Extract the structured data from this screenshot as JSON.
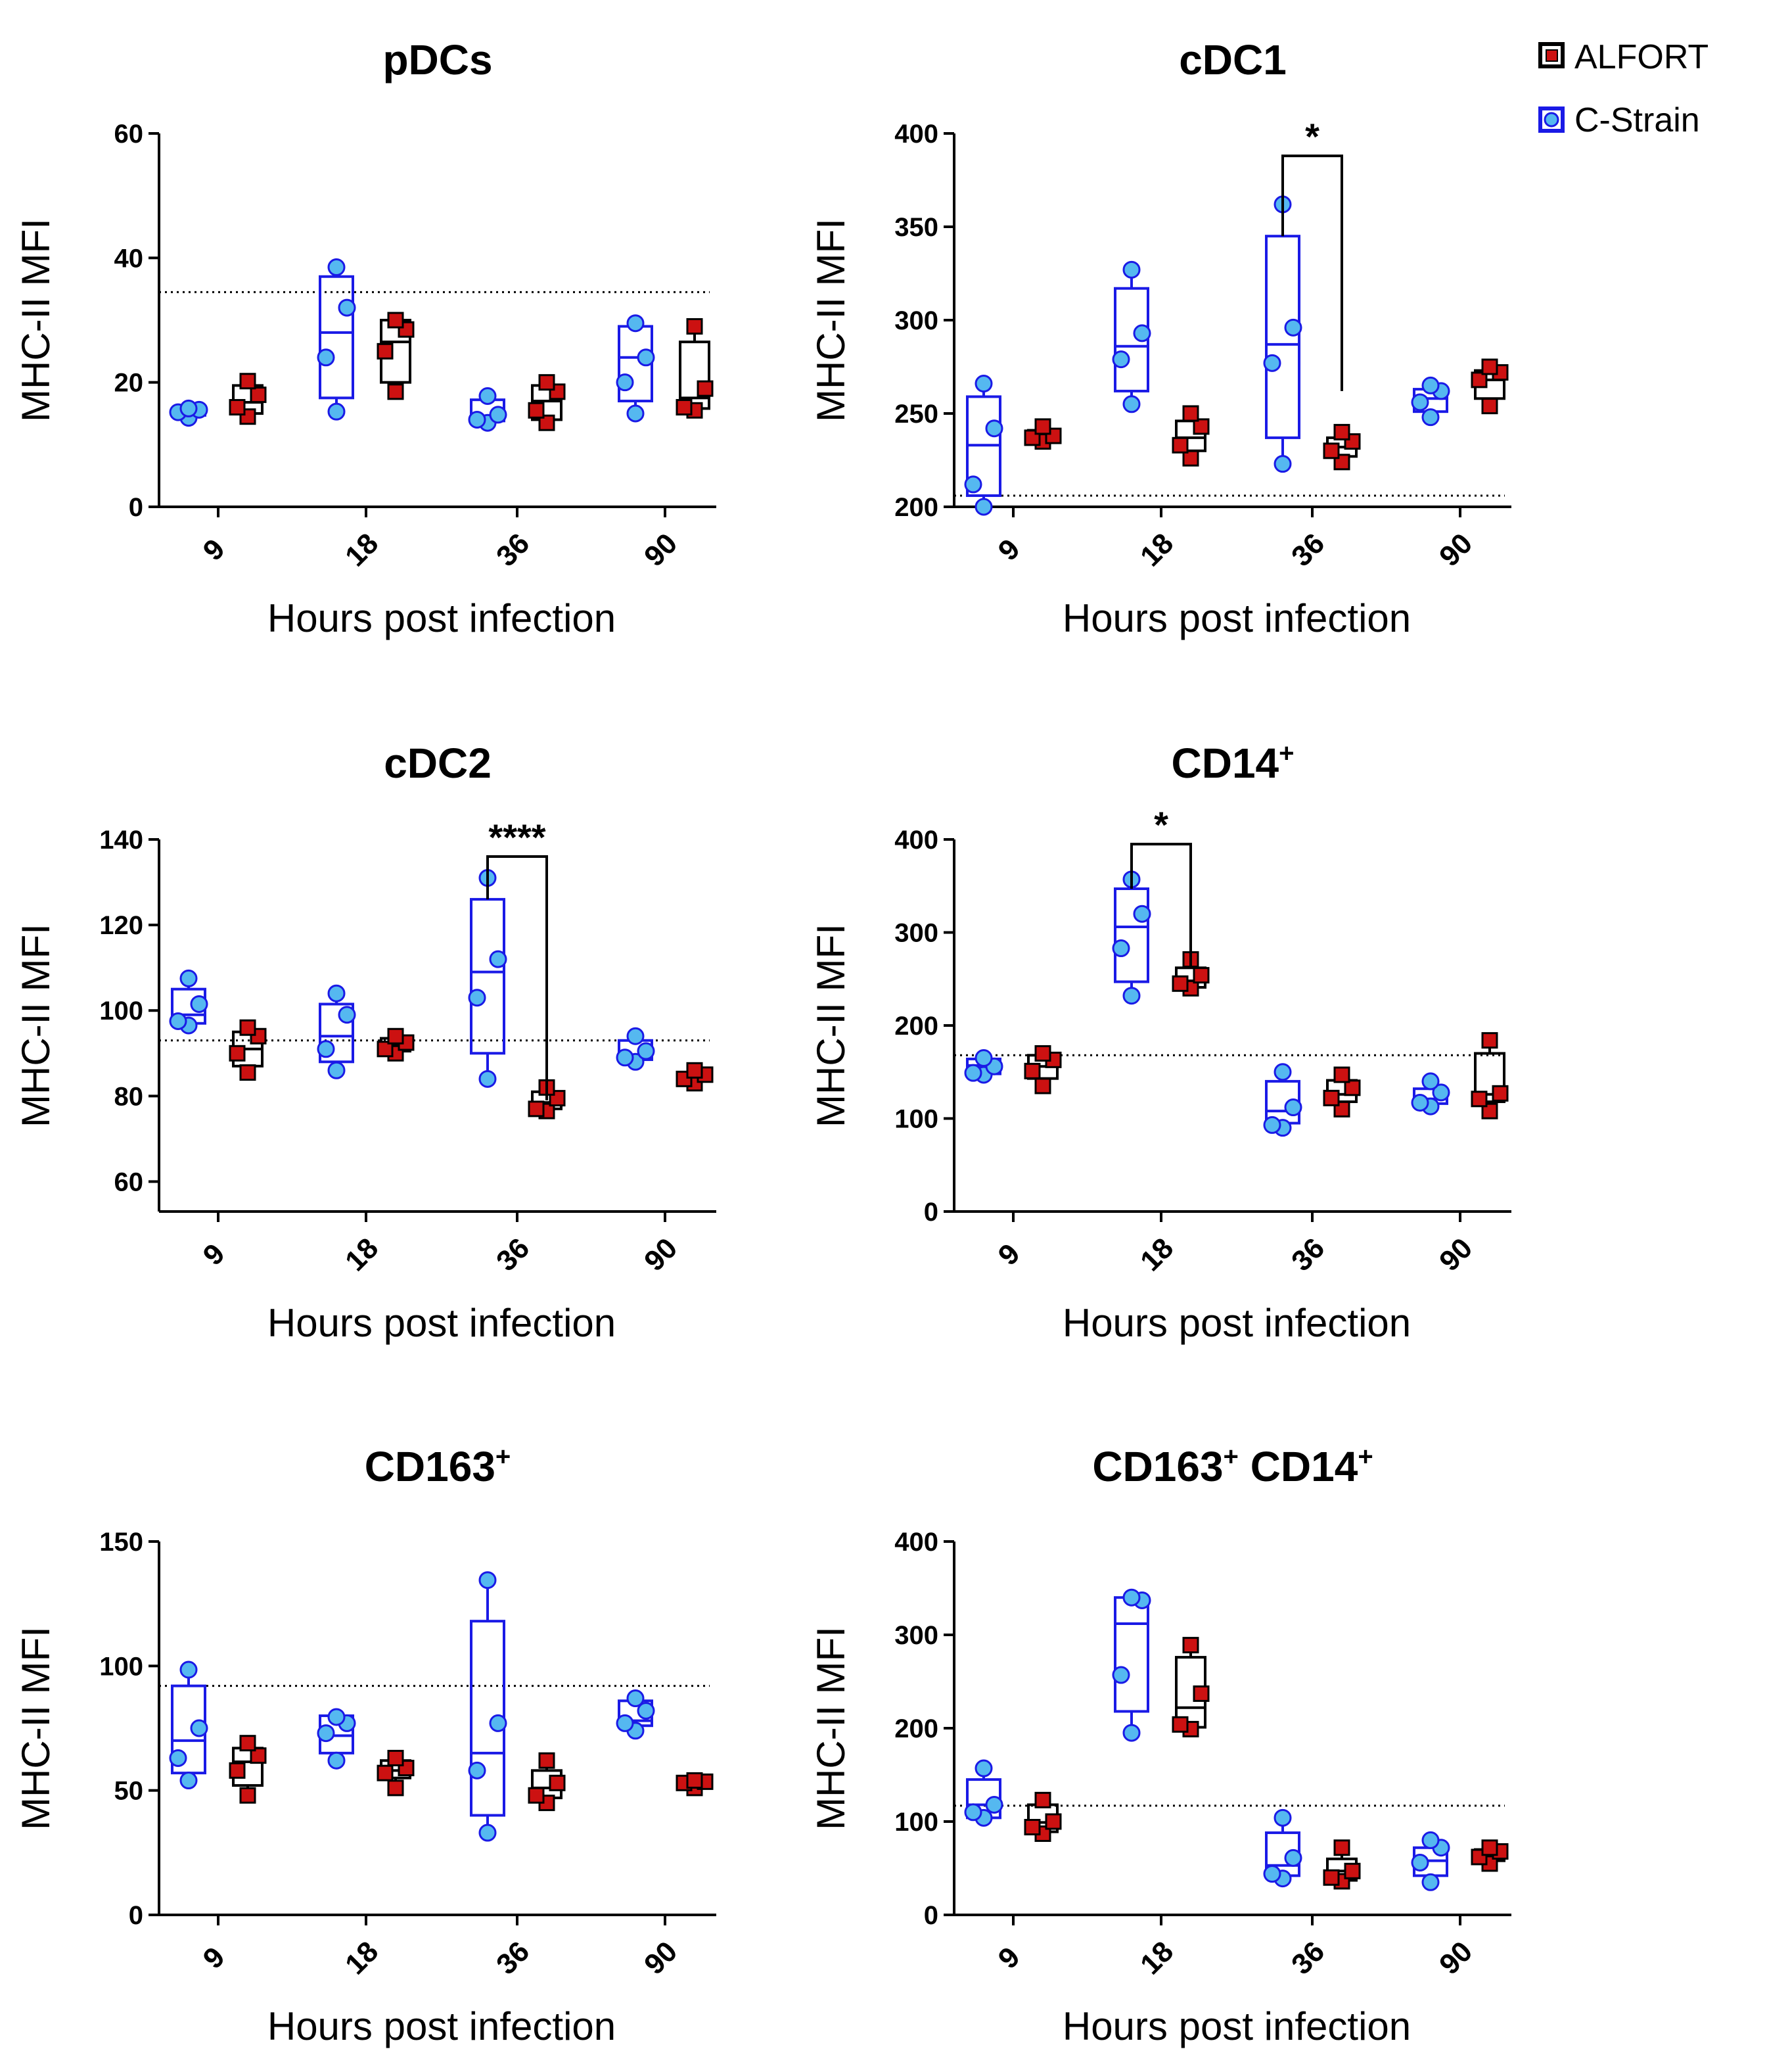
{
  "figure": {
    "legend": [
      {
        "name": "ALFORT",
        "marker": "square",
        "fill": "#cc1111",
        "stroke": "#000000"
      },
      {
        "name": "C-Strain",
        "marker": "circle",
        "fill": "#55b8f0",
        "stroke": "#1a1ae6"
      }
    ]
  },
  "chart_data": [
    {
      "type": "box",
      "title": "pDCs",
      "xlabel": "Hours post infection",
      "ylabel": "MHC-II MFI",
      "ylim": [
        0,
        60
      ],
      "yticks": [
        0,
        20,
        40,
        60
      ],
      "categories": [
        "9",
        "18",
        "36",
        "90"
      ],
      "baseline": 34.5,
      "series": [
        {
          "name": "C-Strain",
          "points": [
            [
              14.3,
              15.2,
              15.6,
              15.8
            ],
            [
              15.3,
              24,
              32,
              38.5
            ],
            [
              13.5,
              14,
              14.8,
              17.8
            ],
            [
              15,
              20,
              24,
              29.5
            ]
          ],
          "box": [
            [
              14.7,
              15.3,
              15.7
            ],
            [
              17.5,
              28,
              37
            ],
            [
              13.8,
              14.4,
              17.2
            ],
            [
              17,
              24,
              29
            ]
          ]
        },
        {
          "name": "ALFORT",
          "points": [
            [
              14.5,
              16,
              18,
              20.2
            ],
            [
              18.5,
              25,
              28.5,
              30
            ],
            [
              13.5,
              15.5,
              18.5,
              20
            ],
            [
              15.5,
              16,
              19,
              29
            ]
          ],
          "box": [
            [
              15,
              16.8,
              19.5
            ],
            [
              20,
              26.5,
              30
            ],
            [
              14,
              17,
              19.5
            ],
            [
              15.8,
              17.5,
              26.5
            ]
          ]
        }
      ],
      "significance": []
    },
    {
      "type": "box",
      "title": "cDC1",
      "xlabel": "Hours post infection",
      "ylabel": "MHC-II MFI",
      "ylim": [
        200,
        400
      ],
      "yticks": [
        200,
        250,
        300,
        350,
        400
      ],
      "categories": [
        "9",
        "18",
        "36",
        "90"
      ],
      "baseline": 206,
      "series": [
        {
          "name": "C-Strain",
          "points": [
            [
              200,
              212,
              242,
              266
            ],
            [
              255,
              279,
              293,
              327
            ],
            [
              223,
              277,
              296,
              362
            ],
            [
              248,
              256,
              262,
              265
            ]
          ],
          "box": [
            [
              206,
              233,
              259
            ],
            [
              262,
              286,
              317
            ],
            [
              237,
              287,
              345
            ],
            [
              251,
              258,
              263
            ]
          ]
        },
        {
          "name": "ALFORT",
          "points": [
            [
              235,
              237,
              238,
              243
            ],
            [
              226,
              233,
              243,
              250
            ],
            [
              224,
              230,
              235,
              240
            ],
            [
              254,
              268,
              272,
              275
            ]
          ],
          "box": [
            [
              236,
              239,
              241
            ],
            [
              230,
              237,
              246
            ],
            [
              227,
              232,
              237
            ],
            [
              258,
              268,
              273
            ]
          ]
        }
      ],
      "significance": [
        {
          "label": "*",
          "category": "36",
          "top": 388,
          "left_end": 345,
          "right_end": 262
        }
      ]
    },
    {
      "type": "box",
      "title": "cDC2",
      "xlabel": "Hours post infection",
      "ylabel": "MHC-II MFI",
      "ylim": [
        53,
        140
      ],
      "yticks": [
        60,
        80,
        100,
        120,
        140
      ],
      "categories": [
        "9",
        "18",
        "36",
        "90"
      ],
      "baseline": 93,
      "series": [
        {
          "name": "C-Strain",
          "points": [
            [
              96.5,
              97.5,
              101.5,
              107.5
            ],
            [
              86,
              91,
              99,
              104
            ],
            [
              84,
              103,
              112,
              131
            ],
            [
              88,
              89,
              90.5,
              94
            ]
          ],
          "box": [
            [
              97,
              99,
              105
            ],
            [
              88,
              94,
              101.5
            ],
            [
              90,
              109,
              126
            ],
            [
              88.5,
              89.5,
              93
            ]
          ]
        },
        {
          "name": "ALFORT",
          "points": [
            [
              85.5,
              90,
              94,
              96
            ],
            [
              90,
              91,
              92.5,
              94
            ],
            [
              76.5,
              77,
              79.5,
              82
            ],
            [
              83,
              84,
              85,
              86
            ]
          ],
          "box": [
            [
              87,
              91,
              95
            ],
            [
              90.5,
              92,
              93.5
            ],
            [
              77,
              78.5,
              81
            ],
            [
              83.5,
              84.5,
              85.5
            ]
          ]
        }
      ],
      "significance": [
        {
          "label": "****",
          "category": "36",
          "top": 136,
          "left_end": 126,
          "right_end": 79
        }
      ]
    },
    {
      "type": "box",
      "title": "CD14",
      "title_sup": "+",
      "xlabel": "Hours post infection",
      "ylabel": "MHC-II MFI",
      "ylim": [
        0,
        400
      ],
      "yticks": [
        0,
        100,
        200,
        300,
        400
      ],
      "categories": [
        "9",
        "18",
        "36",
        "90"
      ],
      "baseline": 168,
      "series": [
        {
          "name": "C-Strain",
          "points": [
            [
              147,
              149,
              156,
              165
            ],
            [
              232,
              283,
              320,
              357
            ],
            [
              90,
              93,
              112,
              150
            ],
            [
              113,
              117,
              128,
              140
            ]
          ],
          "box": [
            [
              148,
              157,
              164
            ],
            [
              247,
              306,
              347
            ],
            [
              95,
              108,
              140
            ],
            [
              116,
              121,
              132
            ]
          ]
        },
        {
          "name": "ALFORT",
          "points": [
            [
              135,
              151,
              163,
              170
            ],
            [
              240,
              245,
              254,
              271
            ],
            [
              110,
              122,
              133,
              147
            ],
            [
              108,
              121,
              127,
              184
            ]
          ],
          "box": [
            [
              143,
              156,
              168
            ],
            [
              241,
              248,
              262
            ],
            [
              118,
              126,
              141
            ],
            [
              118,
              126,
              170
            ]
          ]
        }
      ],
      "significance": [
        {
          "label": "*",
          "category": "18",
          "top": 395,
          "left_end": 347,
          "right_end": 262
        }
      ]
    },
    {
      "type": "box",
      "title": "CD163",
      "title_sup": "+",
      "xlabel": "Hours post infection",
      "ylabel": "MHC-II MFI",
      "ylim": [
        0,
        150
      ],
      "yticks": [
        0,
        50,
        100,
        150
      ],
      "categories": [
        "9",
        "18",
        "36",
        "90"
      ],
      "baseline": 92,
      "series": [
        {
          "name": "C-Strain",
          "points": [
            [
              54,
              63,
              75,
              98.5
            ],
            [
              62,
              73,
              77,
              79.5
            ],
            [
              33,
              58,
              77,
              134.5
            ],
            [
              74,
              77,
              82,
              87
            ]
          ],
          "box": [
            [
              57,
              70,
              92
            ],
            [
              65,
              72,
              80
            ],
            [
              40,
              65,
              118
            ],
            [
              76,
              78,
              86
            ]
          ]
        },
        {
          "name": "ALFORT",
          "points": [
            [
              48,
              58,
              64,
              69
            ],
            [
              51,
              57,
              59,
              63
            ],
            [
              45,
              48,
              53,
              62
            ],
            [
              51,
              53,
              53.5,
              54
            ]
          ],
          "box": [
            [
              52,
              61.5,
              67
            ],
            [
              55,
              58,
              62
            ],
            [
              47,
              51,
              58
            ],
            [
              51.5,
              53,
              54
            ]
          ]
        }
      ],
      "significance": []
    },
    {
      "type": "box",
      "title": "CD163",
      "title_sup": "+",
      "title_part2": " CD14",
      "title_part2_sup": "+",
      "xlabel": "Hours post infection",
      "ylabel": "MHC-II MFI",
      "ylim": [
        0,
        400
      ],
      "yticks": [
        0,
        100,
        200,
        300,
        400
      ],
      "categories": [
        "9",
        "18",
        "36",
        "90"
      ],
      "baseline": 117,
      "series": [
        {
          "name": "C-Strain",
          "points": [
            [
              104,
              110,
              118,
              157
            ],
            [
              195,
              257,
              337,
              340
            ],
            [
              39,
              44,
              61,
              104
            ],
            [
              35,
              56,
              72,
              80
            ]
          ],
          "box": [
            [
              104,
              118,
              145
            ],
            [
              218,
              312,
              340
            ],
            [
              42,
              53,
              88
            ],
            [
              42,
              58,
              72
            ]
          ]
        },
        {
          "name": "ALFORT",
          "points": [
            [
              87,
              94,
              100,
              123
            ],
            [
              199,
              204,
              237,
              289
            ],
            [
              36,
              40,
              47,
              72
            ],
            [
              55,
              62,
              68,
              72
            ]
          ],
          "box": [
            [
              89,
              99,
              118
            ],
            [
              201,
              222,
              276
            ],
            [
              37,
              47,
              60
            ],
            [
              58,
              64,
              70
            ]
          ]
        }
      ],
      "significance": []
    }
  ]
}
